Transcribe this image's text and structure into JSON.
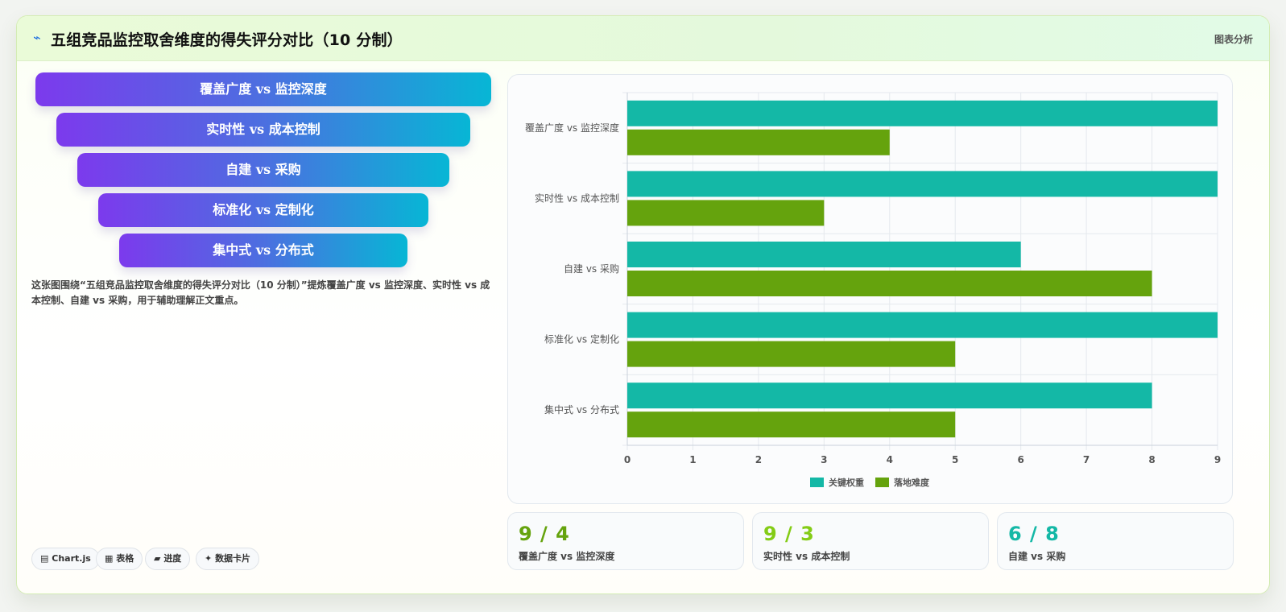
{
  "header": {
    "icon": "spark-icon",
    "title": "五组竞品监控取舍维度的得失评分对比（10 分制）",
    "right_label": "图表分析"
  },
  "funnel": {
    "items": [
      "覆盖广度 vs 监控深度",
      "实时性 vs 成本控制",
      "自建 vs 采购",
      "标准化 vs 定制化",
      "集中式 vs 分布式"
    ]
  },
  "description": "这张图围绕“五组竞品监控取舍维度的得失评分对比（10 分制）”提炼覆盖广度 vs 监控深度、实时性 vs 成本控制、自建 vs 采购，用于辅助理解正文重点。",
  "chips": [
    {
      "icon": "chart-icon",
      "glyph": "▤",
      "label": "Chart.js"
    },
    {
      "icon": "table-icon",
      "glyph": "▦",
      "label": "表格"
    },
    {
      "icon": "progress-icon",
      "glyph": "▰",
      "label": "进度"
    },
    {
      "icon": "card-icon",
      "glyph": "✦",
      "label": "数据卡片"
    }
  ],
  "chart_data": {
    "type": "bar",
    "orientation": "horizontal",
    "categories": [
      "覆盖广度 vs 监控深度",
      "实时性 vs 成本控制",
      "自建 vs 采购",
      "标准化 vs 定制化",
      "集中式 vs 分布式"
    ],
    "series": [
      {
        "name": "关键权重",
        "values": [
          9,
          9,
          6,
          9,
          8
        ],
        "color": "#14b8a6"
      },
      {
        "name": "落地难度",
        "values": [
          4,
          3,
          8,
          5,
          5
        ],
        "color": "#65a30d"
      }
    ],
    "xlim": [
      0,
      9
    ],
    "ticks": [
      "0",
      "1",
      "2",
      "3",
      "4",
      "5",
      "6",
      "7",
      "8",
      "9"
    ],
    "grid": true,
    "legend": "bottom"
  },
  "stats": [
    {
      "value": "9 / 4",
      "label": "覆盖广度 vs 监控深度",
      "color": "#65a30d"
    },
    {
      "value": "9 / 3",
      "label": "实时性 vs 成本控制",
      "color": "#84cc16"
    },
    {
      "value": "6 / 8",
      "label": "自建 vs 采购",
      "color": "#14b8a6"
    }
  ]
}
